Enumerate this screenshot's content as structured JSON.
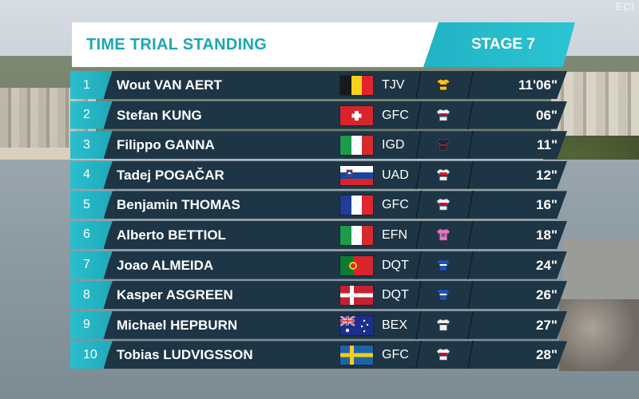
{
  "header": {
    "title": "TIME TRIAL STANDING",
    "stage": "STAGE 7"
  },
  "corner_logo": "ECI",
  "colors": {
    "accent_teal": "#22b3c4",
    "row_navy": "#1d3545",
    "title_teal": "#1aa7b6"
  },
  "standings": [
    {
      "rank": "1",
      "rider": "Wout VAN AERT",
      "flag": "belgium",
      "team": "TJV",
      "jersey": "jersey-tjv-icon",
      "time": "11'06\""
    },
    {
      "rank": "2",
      "rider": "Stefan KUNG",
      "flag": "switzerland",
      "team": "GFC",
      "jersey": "jersey-gfc-icon",
      "time": "06\""
    },
    {
      "rank": "3",
      "rider": "Filippo GANNA",
      "flag": "italy",
      "team": "IGD",
      "jersey": "jersey-igd-icon",
      "time": "11\""
    },
    {
      "rank": "4",
      "rider": "Tadej POGAČAR",
      "flag": "slovenia",
      "team": "UAD",
      "jersey": "jersey-uad-icon",
      "time": "12\""
    },
    {
      "rank": "5",
      "rider": "Benjamin THOMAS",
      "flag": "france",
      "team": "GFC",
      "jersey": "jersey-gfc-icon",
      "time": "16\""
    },
    {
      "rank": "6",
      "rider": "Alberto BETTIOL",
      "flag": "italy",
      "team": "EFN",
      "jersey": "jersey-efn-icon",
      "time": "18\""
    },
    {
      "rank": "7",
      "rider": "Joao ALMEIDA",
      "flag": "portugal",
      "team": "DQT",
      "jersey": "jersey-dqt-icon",
      "time": "24\""
    },
    {
      "rank": "8",
      "rider": "Kasper ASGREEN",
      "flag": "denmark",
      "team": "DQT",
      "jersey": "jersey-dqt-icon",
      "time": "26\""
    },
    {
      "rank": "9",
      "rider": "Michael HEPBURN",
      "flag": "australia",
      "team": "BEX",
      "jersey": "jersey-bex-icon",
      "time": "27\""
    },
    {
      "rank": "10",
      "rider": "Tobias LUDVIGSSON",
      "flag": "sweden",
      "team": "GFC",
      "jersey": "jersey-gfc-icon",
      "time": "28\""
    }
  ]
}
